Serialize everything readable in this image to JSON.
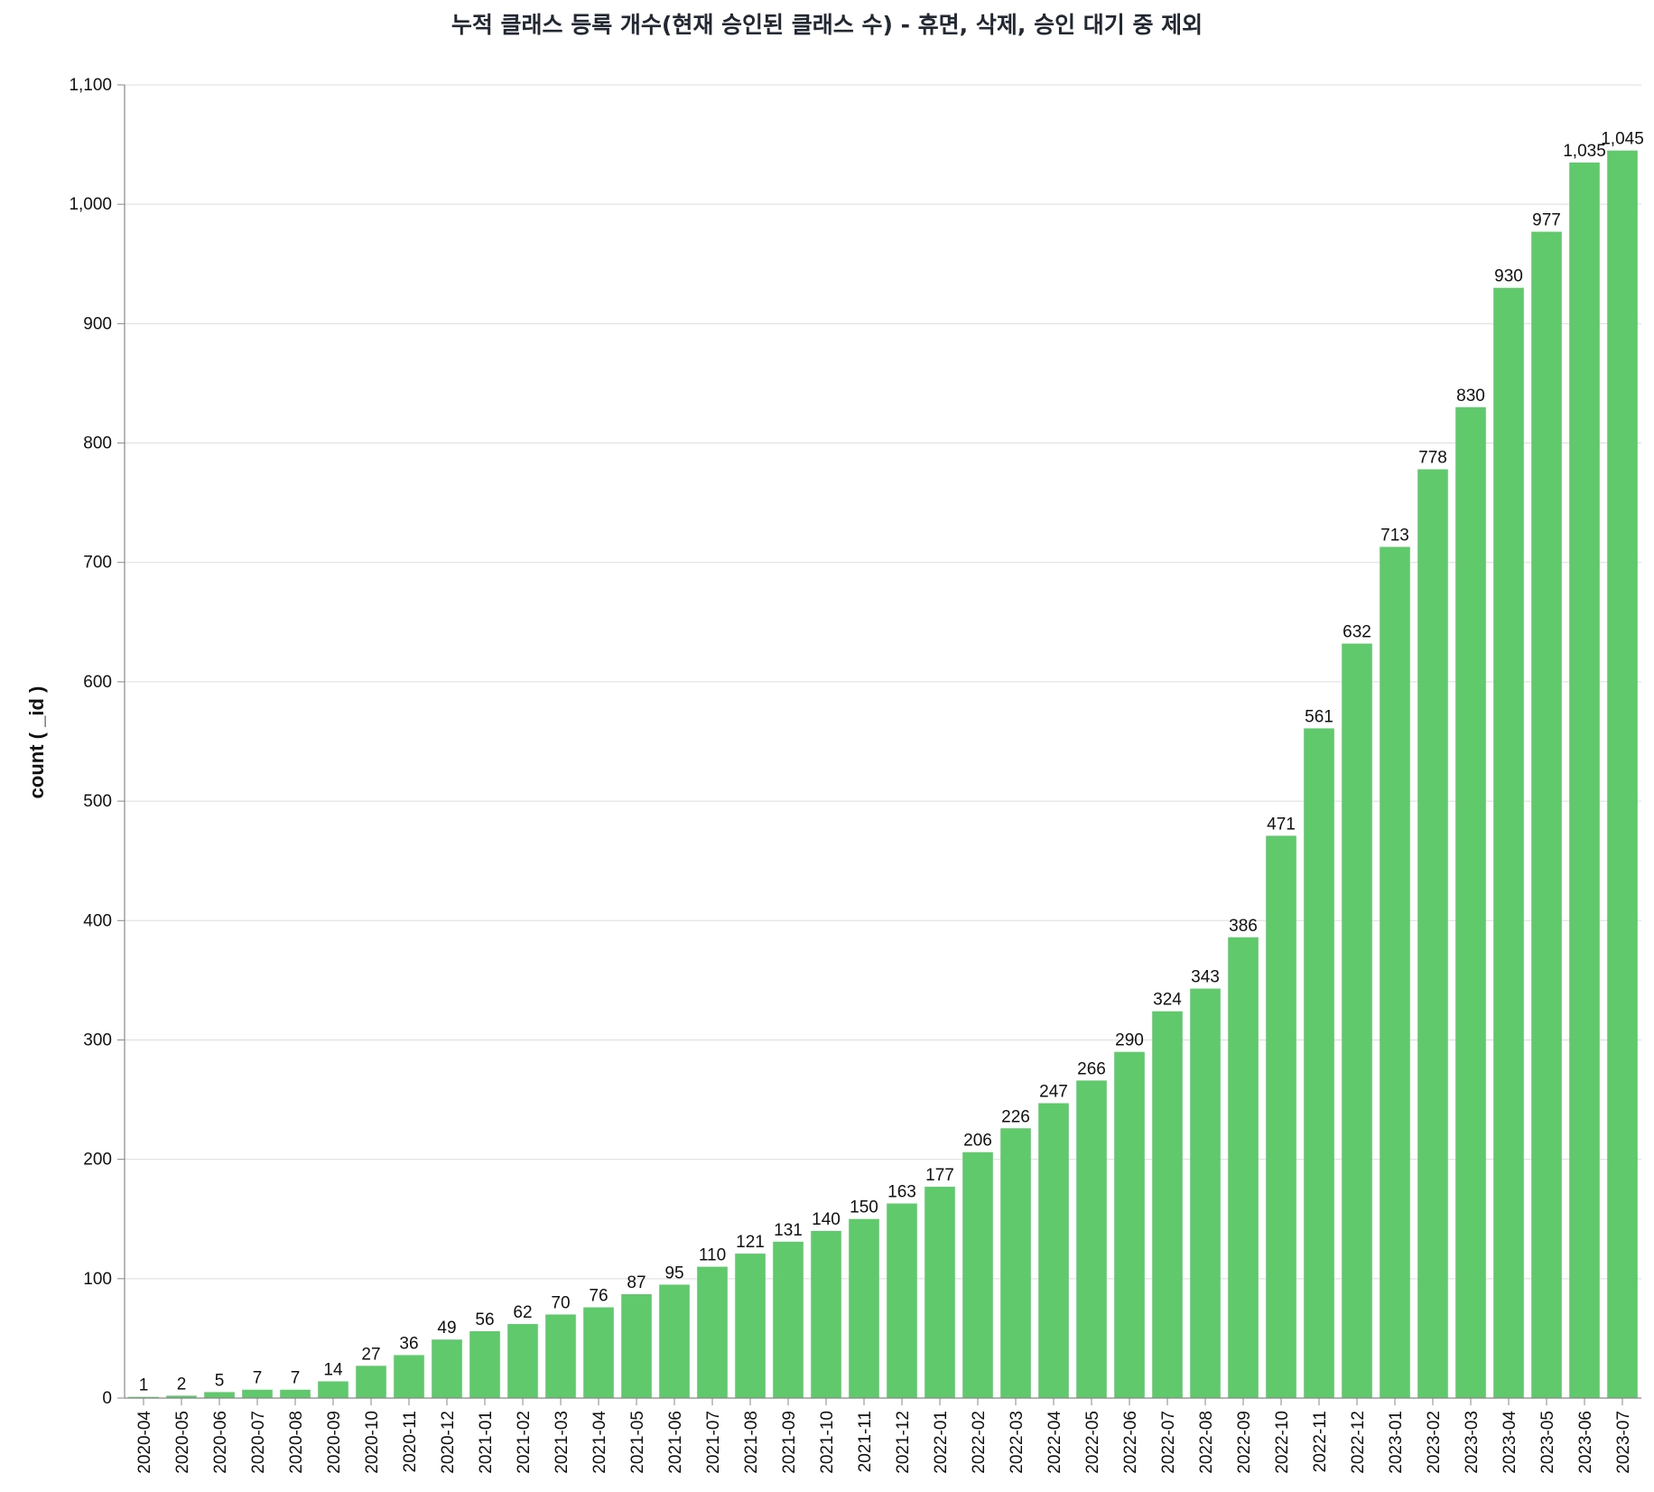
{
  "chart_data": {
    "type": "bar",
    "title": "누적 클래스 등록 개수(현재 승인된 클래스 수) - 휴면, 삭제, 승인 대기 중 제외",
    "xlabel": "",
    "ylabel": "count ( _id )",
    "ylim": [
      0,
      1100
    ],
    "yticks": [
      "0",
      "100",
      "200",
      "300",
      "400",
      "500",
      "600",
      "700",
      "800",
      "900",
      "1,000",
      "1,100"
    ],
    "grid": true,
    "bar_color": "#5fc96c",
    "categories": [
      "2020-04",
      "2020-05",
      "2020-06",
      "2020-07",
      "2020-08",
      "2020-09",
      "2020-10",
      "2020-11",
      "2020-12",
      "2021-01",
      "2021-02",
      "2021-03",
      "2021-04",
      "2021-05",
      "2021-06",
      "2021-07",
      "2021-08",
      "2021-09",
      "2021-10",
      "2021-11",
      "2021-12",
      "2022-01",
      "2022-02",
      "2022-03",
      "2022-04",
      "2022-05",
      "2022-06",
      "2022-07",
      "2022-08",
      "2022-09",
      "2022-10",
      "2022-11",
      "2022-12",
      "2023-01",
      "2023-02",
      "2023-03",
      "2023-04",
      "2023-05",
      "2023-06",
      "2023-07"
    ],
    "values": [
      1,
      2,
      5,
      7,
      7,
      14,
      27,
      36,
      49,
      56,
      62,
      70,
      76,
      87,
      95,
      110,
      121,
      131,
      140,
      150,
      163,
      177,
      206,
      226,
      247,
      266,
      290,
      324,
      343,
      386,
      471,
      561,
      632,
      713,
      778,
      830,
      930,
      977,
      1035,
      1045
    ],
    "value_labels": [
      "1",
      "2",
      "5",
      "7",
      "7",
      "14",
      "27",
      "36",
      "49",
      "56",
      "62",
      "70",
      "76",
      "87",
      "95",
      "110",
      "121",
      "131",
      "140",
      "150",
      "163",
      "177",
      "206",
      "226",
      "247",
      "266",
      "290",
      "324",
      "343",
      "386",
      "471",
      "561",
      "632",
      "713",
      "778",
      "830",
      "930",
      "977",
      "1,035",
      "1,045"
    ]
  }
}
